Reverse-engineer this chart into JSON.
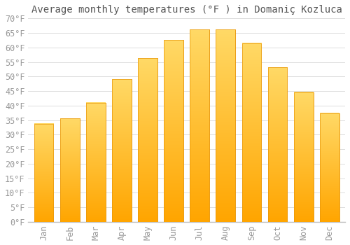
{
  "title": "Average monthly temperatures (°F ) in Domaniç Kozluca",
  "months": [
    "Jan",
    "Feb",
    "Mar",
    "Apr",
    "May",
    "Jun",
    "Jul",
    "Aug",
    "Sep",
    "Oct",
    "Nov",
    "Dec"
  ],
  "values": [
    33.8,
    35.6,
    41.0,
    49.1,
    56.3,
    62.6,
    66.2,
    66.2,
    61.5,
    53.2,
    44.6,
    37.4
  ],
  "bar_color_bottom": "#FFA500",
  "bar_color_top": "#FFD966",
  "bar_edge_color": "#E8960A",
  "background_color": "#FFFFFF",
  "grid_color": "#DDDDDD",
  "ylim": [
    0,
    70
  ],
  "ytick_step": 5,
  "title_fontsize": 10,
  "tick_fontsize": 8.5,
  "bar_width": 0.75
}
